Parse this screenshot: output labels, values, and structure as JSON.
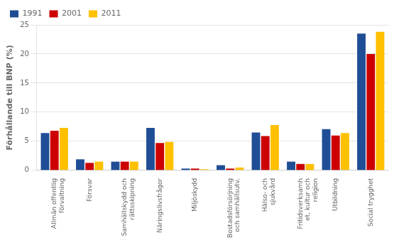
{
  "chart_data": {
    "type": "bar",
    "categories": [
      "Allmän offentlig\nförvaltning",
      "Försvar",
      "Samhällskydd och\nrättsskipning",
      "Näringslivsfrågor",
      "Miljöskydd",
      "Bostadsförsörjning\noch samhällsutv.",
      "Hälso- och\nsjukvård",
      "Fritidsverksamh\net, kultur och\nreligion",
      "Utbildning",
      "Social trygghet"
    ],
    "series": [
      {
        "name": "1991",
        "color": "#1F4E96",
        "values": [
          6.4,
          1.9,
          1.5,
          7.3,
          0.3,
          0.9,
          6.5,
          1.5,
          7.1,
          23.5
        ]
      },
      {
        "name": "2001",
        "color": "#CC0000",
        "values": [
          6.8,
          1.3,
          1.5,
          4.7,
          0.3,
          0.3,
          5.9,
          1.1,
          6.0,
          20.0
        ]
      },
      {
        "name": "2011",
        "color": "#FFC000",
        "values": [
          7.3,
          1.5,
          1.5,
          4.9,
          0.2,
          0.5,
          7.8,
          1.1,
          6.4,
          23.8
        ]
      }
    ],
    "ylabel": "Förhållande till BNP (%)",
    "ylim": [
      0,
      25
    ],
    "yticks": [
      0,
      5,
      10,
      15,
      20,
      25
    ],
    "grid": true,
    "legend": "upper left"
  }
}
